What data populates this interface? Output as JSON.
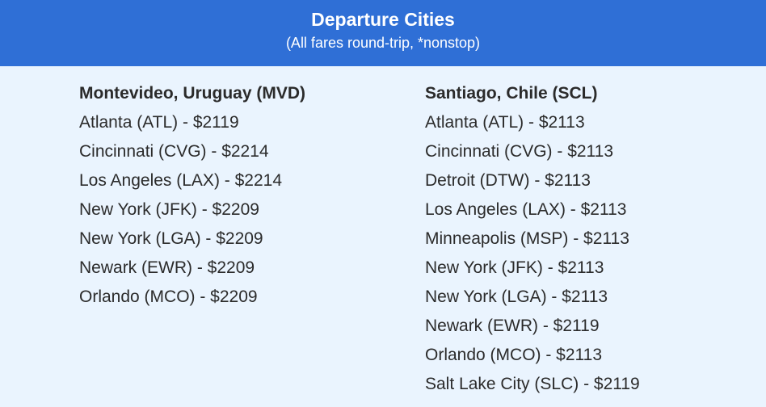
{
  "header": {
    "title": "Departure Cities",
    "subtitle": "(All fares round-trip, *nonstop)"
  },
  "columns": [
    {
      "heading": "Montevideo, Uruguay (MVD)",
      "fares": [
        "Atlanta (ATL) - $2119",
        "Cincinnati (CVG) - $2214",
        "Los Angeles (LAX) - $2214",
        "New York (JFK) - $2209",
        "New York (LGA) - $2209",
        "Newark (EWR) - $2209",
        "Orlando (MCO) - $2209"
      ]
    },
    {
      "heading": "Santiago, Chile (SCL)",
      "fares": [
        "Atlanta (ATL) - $2113",
        "Cincinnati (CVG) - $2113",
        "Detroit (DTW) - $2113",
        "Los Angeles (LAX) - $2113",
        "Minneapolis (MSP) - $2113",
        "New York (JFK) - $2113",
        "New York (LGA) - $2113",
        "Newark (EWR) - $2119",
        "Orlando (MCO) - $2113",
        "Salt Lake City (SLC) - $2119"
      ]
    }
  ],
  "colors": {
    "header_bg": "#2f6fd6",
    "page_bg": "#eaf4fe",
    "text": "#2b2b2b"
  }
}
